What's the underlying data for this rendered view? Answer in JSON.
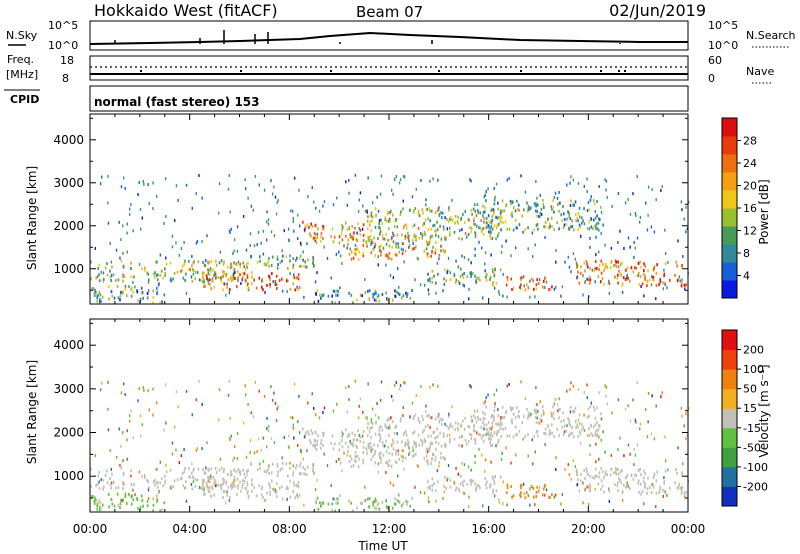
{
  "header": {
    "station": "Hokkaido West (fitACF)",
    "beam": "Beam 07",
    "date": "02/Jun/2019"
  },
  "status_panels": {
    "noise": {
      "left_label": "N.Sky",
      "right_label": "N.Search",
      "left_ticks": [
        "10^5",
        "10^0"
      ],
      "right_ticks": [
        "10^5",
        "10^0"
      ]
    },
    "freq": {
      "left_label": "Freq.",
      "left_unit": "[MHz]",
      "right_label": "Nave",
      "left_ticks": [
        "18",
        "8"
      ],
      "right_ticks": [
        "60",
        "0"
      ]
    },
    "cpid": {
      "label": "CPID",
      "text": "normal (fast stereo) 153"
    }
  },
  "chart_data": [
    {
      "type": "heatmap",
      "name": "power",
      "ylabel": "Slant Range [km]",
      "ylim": [
        180,
        4600
      ],
      "yticks": [
        "1000",
        "2000",
        "3000",
        "4000"
      ],
      "xlim": [
        "00:00",
        "24:00"
      ],
      "colorbar": {
        "label": "Power [dB]",
        "ticks": [
          "4",
          "8",
          "12",
          "16",
          "20",
          "24",
          "28"
        ],
        "range": [
          0,
          30
        ],
        "colors": [
          "#0a18e0",
          "#1560d8",
          "#2f8a9a",
          "#4a9a5a",
          "#9abf30",
          "#f0c818",
          "#f5a010",
          "#f07010",
          "#e83c0c",
          "#d81010"
        ]
      }
    },
    {
      "type": "heatmap",
      "name": "velocity",
      "ylabel": "Slant Range [km]",
      "ylim": [
        180,
        4600
      ],
      "yticks": [
        "1000",
        "2000",
        "3000",
        "4000"
      ],
      "xlim": [
        "00:00",
        "24:00"
      ],
      "xticks": [
        "00:00",
        "04:00",
        "08:00",
        "12:00",
        "16:00",
        "20:00",
        "00:00"
      ],
      "xlabel": "Time UT",
      "colorbar": {
        "label": "Velocity [m s⁻¹]",
        "ticks": [
          "200",
          "100",
          "50",
          "15",
          "-15",
          "-50",
          "-100",
          "-200"
        ],
        "range": [
          -250,
          250
        ],
        "colors": [
          "#1030c0",
          "#2070a0",
          "#40a040",
          "#60c040",
          "#c0c0b8",
          "#f0b020",
          "#f08010",
          "#f04010",
          "#e01010"
        ]
      }
    }
  ]
}
